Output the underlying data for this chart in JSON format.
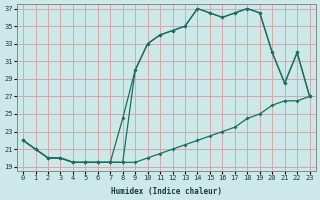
{
  "xlabel": "Humidex (Indice chaleur)",
  "xlim": [
    -0.5,
    23.5
  ],
  "ylim": [
    18.5,
    37.5
  ],
  "xticks": [
    0,
    1,
    2,
    3,
    4,
    5,
    6,
    7,
    8,
    9,
    10,
    11,
    12,
    13,
    14,
    15,
    16,
    17,
    18,
    19,
    20,
    21,
    22,
    23
  ],
  "yticks": [
    19,
    21,
    23,
    25,
    27,
    29,
    31,
    33,
    35,
    37
  ],
  "bg_color": "#cce8e8",
  "line_color": "#1a6e60",
  "grid_color": "#d4a8a8",
  "line1_x": [
    0,
    1,
    2,
    3,
    4,
    5,
    6,
    7,
    8,
    9,
    10,
    11,
    12,
    13,
    14,
    15,
    16,
    17,
    18,
    19,
    20,
    21,
    22,
    23
  ],
  "line1_y": [
    22,
    21,
    20,
    20,
    19.5,
    19.5,
    19.5,
    19.5,
    19.5,
    19.5,
    20,
    20.5,
    21,
    21.5,
    22,
    22.5,
    23,
    23.5,
    24.5,
    25,
    26,
    26.5,
    26.5,
    27
  ],
  "line2_x": [
    0,
    1,
    2,
    3,
    4,
    5,
    6,
    7,
    8,
    9,
    10,
    11,
    12,
    13,
    14,
    15,
    16,
    17,
    18,
    19,
    20,
    21,
    22,
    23
  ],
  "line2_y": [
    22,
    21,
    20,
    20,
    19.5,
    19.5,
    19.5,
    19.5,
    19.5,
    30,
    33,
    34,
    34.5,
    35,
    37,
    36.5,
    36,
    36.5,
    37,
    36.5,
    32,
    28.5,
    32,
    27
  ],
  "line3_x": [
    0,
    1,
    2,
    3,
    4,
    5,
    6,
    7,
    8,
    9,
    10,
    11,
    12,
    13,
    14,
    15,
    16,
    17,
    18,
    19,
    20,
    21,
    22,
    23
  ],
  "line3_y": [
    22,
    21,
    20,
    20,
    19.5,
    19.5,
    19.5,
    19.5,
    24.5,
    30,
    33,
    34,
    34.5,
    35,
    37,
    36.5,
    36,
    36.5,
    37,
    36.5,
    32,
    28.5,
    32,
    27
  ]
}
